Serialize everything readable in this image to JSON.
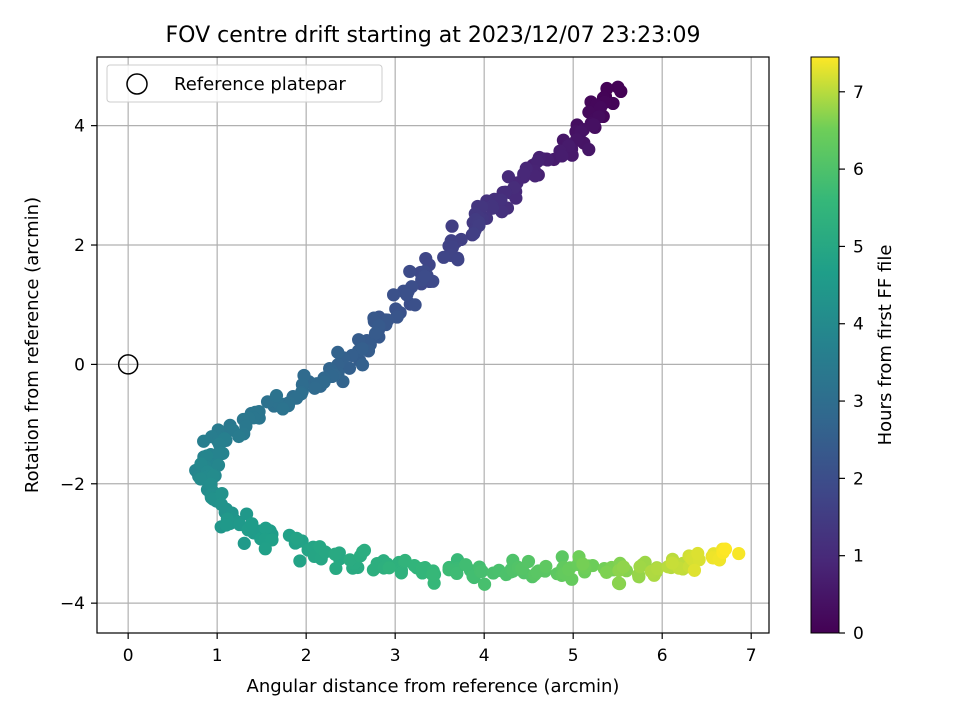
{
  "chart_data": {
    "type": "scatter",
    "title": "FOV centre drift starting at 2023/12/07 23:23:09",
    "xlabel": "Angular distance from reference (arcmin)",
    "ylabel": "Rotation from reference (arcmin)",
    "xlim": [
      -0.35,
      7.2
    ],
    "ylim": [
      -4.5,
      5.15
    ],
    "x_ticks": [
      0,
      1,
      2,
      3,
      4,
      5,
      6,
      7
    ],
    "x_tick_labels": [
      "0",
      "1",
      "2",
      "3",
      "4",
      "5",
      "6",
      "7"
    ],
    "y_ticks": [
      -4,
      -2,
      0,
      2,
      4
    ],
    "y_tick_labels": [
      "−4",
      "−2",
      "0",
      "2",
      "4"
    ],
    "grid": true,
    "legend": {
      "placement": "top-left",
      "entries": [
        "Reference platepar"
      ]
    },
    "reference_point": {
      "x": 0,
      "y": 0
    },
    "colorbar": {
      "label": "Hours from first FF file",
      "colormap": "viridis",
      "range": [
        0,
        7.45
      ],
      "ticks": [
        0,
        1,
        2,
        3,
        4,
        5,
        6,
        7
      ],
      "tick_labels": [
        "0",
        "1",
        "2",
        "3",
        "4",
        "5",
        "6",
        "7"
      ]
    },
    "path_knots": [
      {
        "t": 0.0,
        "x": 5.45,
        "y": 4.6
      },
      {
        "t": 0.5,
        "x": 5.0,
        "y": 3.7
      },
      {
        "t": 1.0,
        "x": 4.35,
        "y": 3.0
      },
      {
        "t": 1.5,
        "x": 3.85,
        "y": 2.3
      },
      {
        "t": 2.0,
        "x": 3.2,
        "y": 1.2
      },
      {
        "t": 2.5,
        "x": 2.6,
        "y": 0.2
      },
      {
        "t": 3.0,
        "x": 1.9,
        "y": -0.5
      },
      {
        "t": 3.5,
        "x": 1.05,
        "y": -1.2
      },
      {
        "t": 4.0,
        "x": 0.85,
        "y": -1.95
      },
      {
        "t": 4.5,
        "x": 1.25,
        "y": -2.75
      },
      {
        "t": 5.0,
        "x": 2.3,
        "y": -3.2
      },
      {
        "t": 5.5,
        "x": 3.3,
        "y": -3.45
      },
      {
        "t": 6.0,
        "x": 4.3,
        "y": -3.5
      },
      {
        "t": 6.5,
        "x": 5.2,
        "y": -3.45
      },
      {
        "t": 7.0,
        "x": 6.1,
        "y": -3.45
      },
      {
        "t": 7.45,
        "x": 6.8,
        "y": -3.1
      }
    ],
    "n_points": 380,
    "accent_colors": {
      "grid": "#b0b0b0",
      "legend_edge": "#cccccc"
    }
  }
}
